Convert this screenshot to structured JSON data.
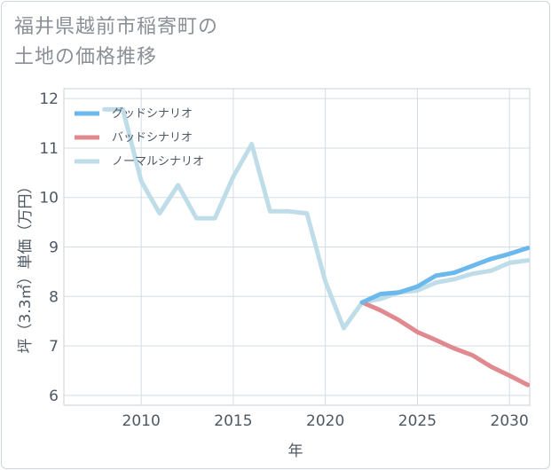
{
  "title": {
    "line1": "福井県越前市稲寄町の",
    "line2": "土地の価格推移"
  },
  "chart_data": {
    "type": "line",
    "title": "福井県越前市稲寄町の土地の価格推移",
    "xlabel": "年",
    "ylabel": "坪（3.3㎡）単価（万円）",
    "xlim": [
      2005.8,
      2031.1
    ],
    "ylim": [
      5.8,
      12.2
    ],
    "xticks": [
      2010,
      2015,
      2020,
      2025,
      2030
    ],
    "yticks": [
      6,
      7,
      8,
      9,
      10,
      11,
      12
    ],
    "grid": true,
    "legend_position": "top-left",
    "series": [
      {
        "name": "グッドシナリオ",
        "color": "#6bb8ec",
        "x": [
          2022,
          2023,
          2024,
          2025,
          2026,
          2027,
          2028,
          2029,
          2030,
          2031
        ],
        "y": [
          7.88,
          8.05,
          8.08,
          8.2,
          8.42,
          8.48,
          8.62,
          8.76,
          8.86,
          8.98
        ]
      },
      {
        "name": "バッドシナリオ",
        "color": "#e08a90",
        "x": [
          2022,
          2023,
          2024,
          2025,
          2026,
          2027,
          2028,
          2029,
          2030,
          2031
        ],
        "y": [
          7.88,
          7.72,
          7.52,
          7.28,
          7.12,
          6.95,
          6.81,
          6.58,
          6.4,
          6.21
        ]
      },
      {
        "name": "ノーマルシナリオ",
        "color": "#bfdde9",
        "x": [
          2008,
          2009,
          2010,
          2011,
          2012,
          2013,
          2014,
          2015,
          2016,
          2017,
          2018,
          2019,
          2020,
          2021,
          2022,
          2023,
          2024,
          2025,
          2026,
          2027,
          2028,
          2029,
          2030,
          2031
        ],
        "y": [
          11.78,
          11.78,
          10.33,
          9.68,
          10.25,
          9.58,
          9.58,
          10.42,
          11.08,
          9.72,
          9.72,
          9.68,
          8.3,
          7.36,
          7.88,
          7.95,
          8.08,
          8.12,
          8.28,
          8.35,
          8.46,
          8.52,
          8.68,
          8.73
        ]
      }
    ]
  }
}
